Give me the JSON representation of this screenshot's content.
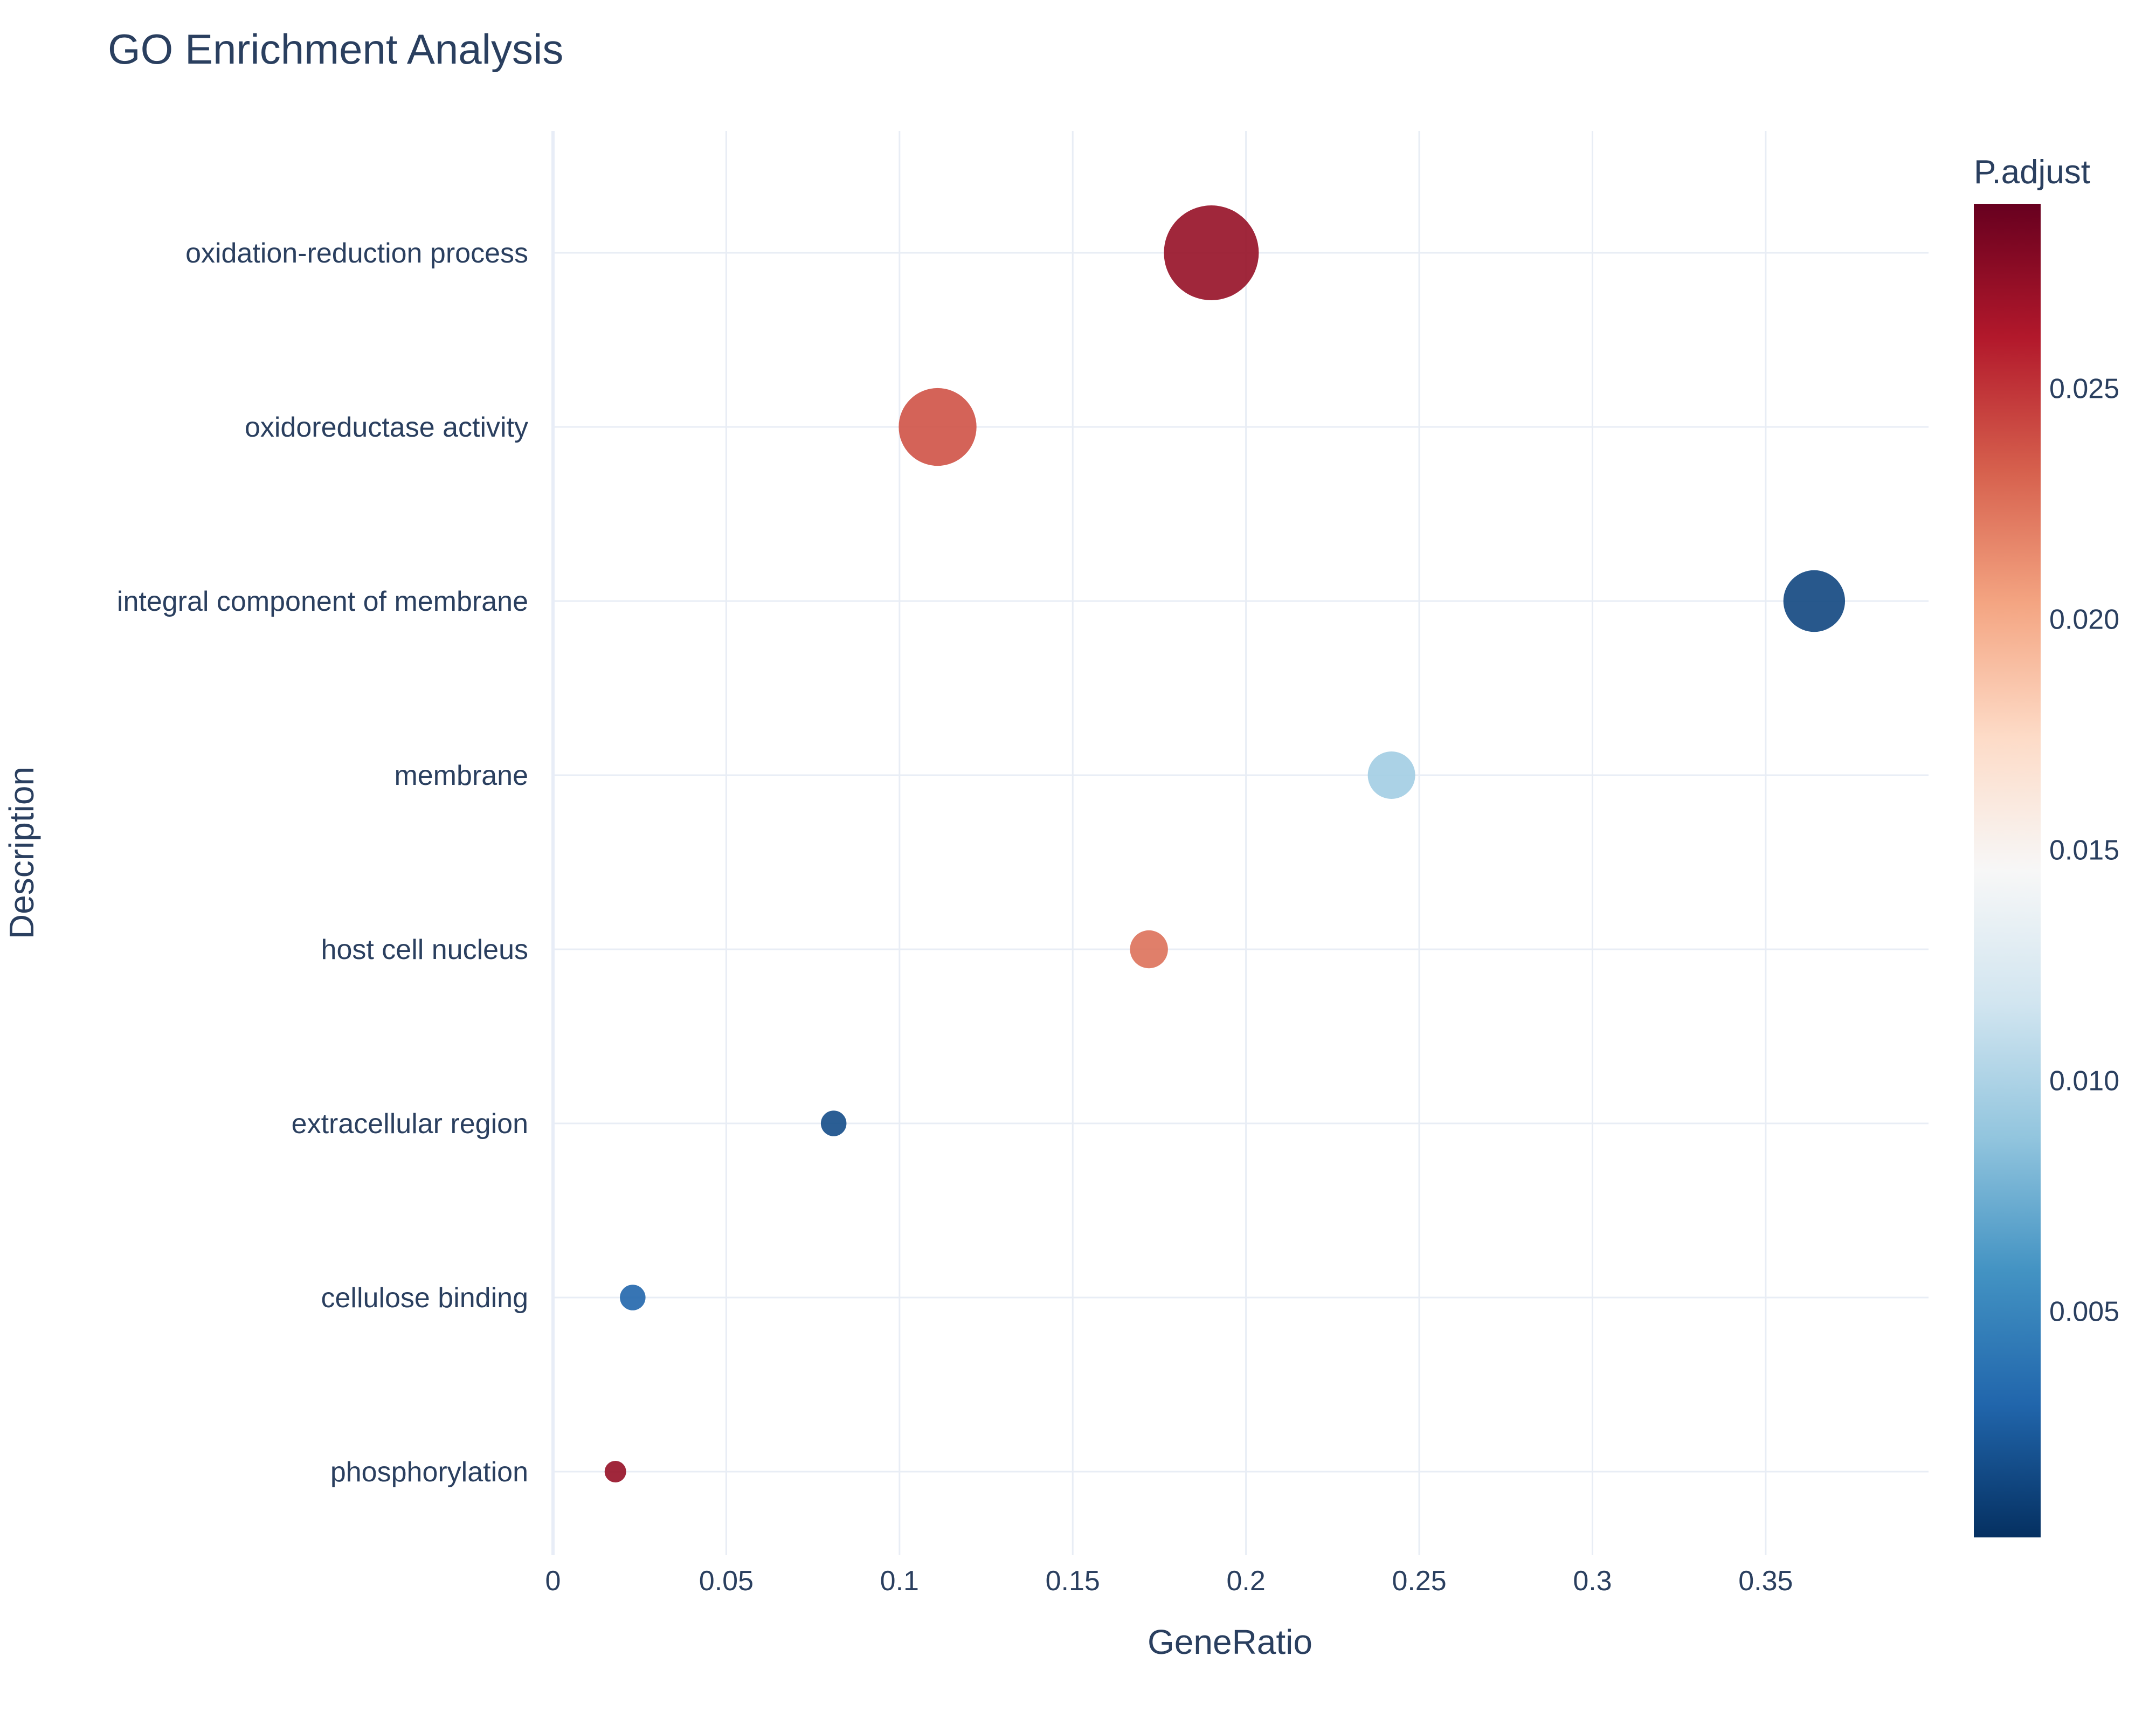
{
  "chart_data": {
    "type": "scatter",
    "title": "GO Enrichment Analysis",
    "xlabel": "GeneRatio",
    "ylabel": "Description",
    "xlim": [
      0,
      0.397
    ],
    "xticks": [
      0,
      0.05,
      0.1,
      0.15,
      0.2,
      0.25,
      0.3,
      0.35
    ],
    "xtick_labels": [
      "0",
      "0.05",
      "0.1",
      "0.15",
      "0.2",
      "0.25",
      "0.3",
      "0.35"
    ],
    "grid": true,
    "categories": [
      "oxidation-reduction process",
      "oxidoreductase activity",
      "integral component of membrane",
      "membrane",
      "host cell nucleus",
      "extracellular region",
      "cellulose binding",
      "phosphorylation"
    ],
    "points": [
      {
        "description": "oxidation-reduction process",
        "gene_ratio": 0.19,
        "p_adjust": 0.0272,
        "marker_size": 1.0
      },
      {
        "description": "oxidoreductase activity",
        "gene_ratio": 0.111,
        "p_adjust": 0.0238,
        "marker_size": 0.82
      },
      {
        "description": "integral component of membrane",
        "gene_ratio": 0.364,
        "p_adjust": 0.0013,
        "marker_size": 0.65
      },
      {
        "description": "membrane",
        "gene_ratio": 0.242,
        "p_adjust": 0.0095,
        "marker_size": 0.5
      },
      {
        "description": "host cell nucleus",
        "gene_ratio": 0.172,
        "p_adjust": 0.0225,
        "marker_size": 0.4
      },
      {
        "description": "extracellular region",
        "gene_ratio": 0.081,
        "p_adjust": 0.0016,
        "marker_size": 0.27
      },
      {
        "description": "cellulose binding",
        "gene_ratio": 0.023,
        "p_adjust": 0.003,
        "marker_size": 0.27
      },
      {
        "description": "phosphorylation",
        "gene_ratio": 0.018,
        "p_adjust": 0.0272,
        "marker_size": 0.22
      }
    ],
    "colorbar": {
      "title": "P.adjust",
      "min": 0.0001,
      "max": 0.029,
      "ticks": [
        0.005,
        0.01,
        0.015,
        0.02,
        0.025
      ],
      "tick_labels": [
        "0.005",
        "0.010",
        "0.015",
        "0.020",
        "0.025"
      ],
      "colorscale": [
        "#053061",
        "#2166ac",
        "#4393c3",
        "#92c5de",
        "#d1e5f0",
        "#f7f7f7",
        "#fddbc7",
        "#f4a582",
        "#d6604d",
        "#b2182b",
        "#67001f"
      ],
      "placement": "right"
    }
  }
}
